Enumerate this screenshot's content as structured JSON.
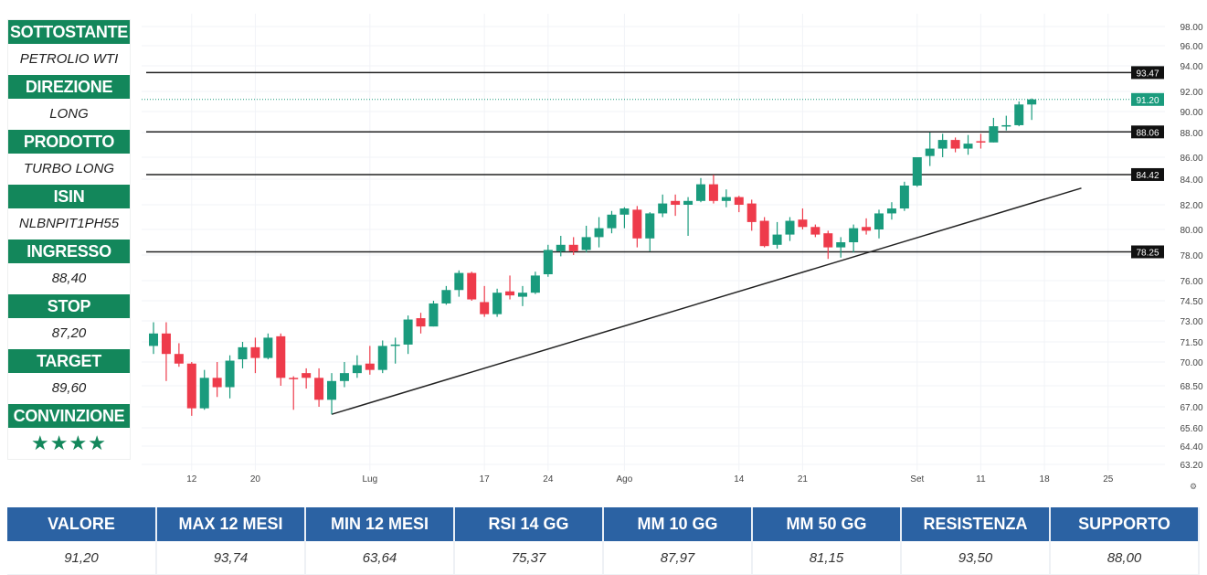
{
  "panel": [
    {
      "label": "SOTTOSTANTE",
      "value": "PETROLIO WTI"
    },
    {
      "label": "DIREZIONE",
      "value": "LONG"
    },
    {
      "label": "PRODOTTO",
      "value": "TURBO LONG"
    },
    {
      "label": "ISIN",
      "value": "NLBNPIT1PH55"
    },
    {
      "label": "INGRESSO",
      "value": "88,40"
    },
    {
      "label": "STOP",
      "value": "87,20"
    },
    {
      "label": "TARGET",
      "value": "89,60"
    },
    {
      "label": "CONVINZIONE",
      "value": "★★★★"
    }
  ],
  "stats": {
    "headers": [
      "VALORE",
      "MAX 12 MESI",
      "MIN 12 MESI",
      "RSI 14 GG",
      "MM 10 GG",
      "MM 50 GG",
      "RESISTENZA",
      "SUPPORTO"
    ],
    "values": [
      "91,20",
      "93,74",
      "63,64",
      "75,37",
      "87,97",
      "81,15",
      "93,50",
      "88,00"
    ]
  },
  "colors": {
    "up": "#1a9b7d",
    "down": "#ee3b4b",
    "panel": "#13875b",
    "table": "#2b62a3",
    "last": "#1a9b7d"
  },
  "chart_data": {
    "type": "candlestick",
    "y_ticks": [
      "98.00",
      "96.00",
      "94.00",
      "92.00",
      "90.00",
      "88.00",
      "86.00",
      "84.00",
      "82.00",
      "80.00",
      "78.00",
      "76.00",
      "74.50",
      "73.00",
      "71.50",
      "70.00",
      "68.50",
      "67.00",
      "65.60",
      "64.40",
      "63.20"
    ],
    "x_labels": [
      {
        "label": "12",
        "index": 3
      },
      {
        "label": "20",
        "index": 8
      },
      {
        "label": "Lug",
        "index": 17
      },
      {
        "label": "17",
        "index": 26
      },
      {
        "label": "24",
        "index": 31
      },
      {
        "label": "Ago",
        "index": 37
      },
      {
        "label": "14",
        "index": 46
      },
      {
        "label": "21",
        "index": 51
      },
      {
        "label": "Set",
        "index": 60
      },
      {
        "label": "11",
        "index": 65
      },
      {
        "label": "18",
        "index": 70
      },
      {
        "label": "25",
        "index": 75
      }
    ],
    "levels": [
      {
        "price": 93.47,
        "label": "93.47"
      },
      {
        "price": 88.06,
        "label": "88.06"
      },
      {
        "price": 84.42,
        "label": "84.42"
      },
      {
        "price": 78.25,
        "label": "78.25"
      }
    ],
    "last_price": {
      "price": 91.2,
      "label": "91.20"
    },
    "trendline": {
      "from": {
        "index": 14,
        "price": 66.5
      },
      "to": {
        "index": 72.9,
        "price": 83.3
      }
    },
    "ohlc": [
      [
        71.2,
        72.9,
        70.6,
        72.1
      ],
      [
        72.1,
        72.9,
        68.8,
        70.6
      ],
      [
        70.6,
        71.4,
        69.7,
        69.9
      ],
      [
        69.9,
        70.0,
        66.4,
        66.9
      ],
      [
        66.9,
        69.5,
        66.8,
        69.0
      ],
      [
        69.0,
        70.0,
        67.7,
        68.4
      ],
      [
        68.4,
        70.5,
        67.6,
        70.1
      ],
      [
        70.2,
        71.5,
        69.6,
        71.1
      ],
      [
        71.1,
        71.8,
        69.3,
        70.3
      ],
      [
        70.3,
        72.1,
        70.2,
        71.8
      ],
      [
        71.9,
        72.1,
        68.5,
        69.0
      ],
      [
        69.0,
        69.1,
        66.8,
        68.95
      ],
      [
        69.3,
        69.6,
        68.3,
        69.0
      ],
      [
        69.0,
        69.6,
        67.0,
        67.5
      ],
      [
        67.5,
        69.3,
        66.5,
        68.8
      ],
      [
        68.8,
        70.0,
        68.4,
        69.3
      ],
      [
        69.3,
        70.5,
        69.0,
        69.8
      ],
      [
        69.9,
        71.2,
        69.2,
        69.5
      ],
      [
        69.5,
        71.6,
        69.3,
        71.2
      ],
      [
        71.2,
        71.8,
        69.9,
        71.3
      ],
      [
        71.3,
        73.4,
        70.6,
        73.1
      ],
      [
        73.2,
        73.6,
        72.1,
        72.6
      ],
      [
        72.6,
        74.5,
        72.6,
        74.3
      ],
      [
        74.3,
        75.6,
        74.2,
        75.3
      ],
      [
        75.3,
        76.8,
        74.8,
        76.6
      ],
      [
        76.6,
        76.7,
        74.5,
        74.6
      ],
      [
        74.4,
        75.6,
        73.3,
        73.5
      ],
      [
        73.5,
        75.4,
        73.3,
        75.1
      ],
      [
        75.2,
        76.4,
        74.6,
        74.9
      ],
      [
        74.8,
        75.6,
        74.1,
        75.1
      ],
      [
        75.1,
        76.7,
        75.0,
        76.4
      ],
      [
        76.5,
        78.8,
        76.3,
        78.4
      ],
      [
        78.3,
        79.5,
        77.9,
        78.8
      ],
      [
        78.8,
        79.4,
        78.0,
        78.3
      ],
      [
        78.4,
        80.3,
        78.2,
        79.4
      ],
      [
        79.4,
        81.0,
        78.6,
        80.1
      ],
      [
        80.1,
        81.5,
        79.7,
        81.2
      ],
      [
        81.2,
        81.8,
        80.1,
        81.7
      ],
      [
        81.6,
        81.9,
        78.6,
        79.3
      ],
      [
        79.3,
        81.4,
        78.3,
        81.3
      ],
      [
        81.3,
        82.8,
        81.0,
        82.1
      ],
      [
        82.3,
        82.8,
        81.1,
        82.0
      ],
      [
        82.0,
        82.6,
        79.5,
        82.3
      ],
      [
        82.3,
        84.1,
        82.2,
        83.6
      ],
      [
        83.6,
        84.4,
        82.1,
        82.3
      ],
      [
        82.3,
        83.2,
        81.8,
        82.6
      ],
      [
        82.6,
        82.7,
        81.4,
        82.0
      ],
      [
        82.1,
        82.4,
        79.9,
        80.6
      ],
      [
        80.7,
        81.0,
        78.6,
        78.7
      ],
      [
        78.8,
        80.6,
        78.5,
        79.6
      ],
      [
        79.6,
        81.0,
        79.1,
        80.7
      ],
      [
        80.8,
        81.7,
        80.0,
        80.2
      ],
      [
        80.2,
        80.4,
        79.4,
        79.6
      ],
      [
        79.7,
        79.9,
        77.7,
        78.6
      ],
      [
        78.6,
        79.4,
        77.8,
        79.0
      ],
      [
        79.0,
        80.4,
        78.2,
        80.1
      ],
      [
        80.2,
        80.9,
        79.6,
        79.9
      ],
      [
        80.0,
        81.6,
        79.3,
        81.3
      ],
      [
        81.3,
        82.2,
        80.8,
        81.7
      ],
      [
        81.7,
        83.8,
        81.5,
        83.5
      ],
      [
        83.5,
        86.0,
        83.4,
        86.0
      ],
      [
        86.1,
        88.0,
        85.2,
        86.7
      ],
      [
        86.7,
        87.9,
        86.0,
        87.4
      ],
      [
        87.4,
        87.6,
        86.4,
        86.7
      ],
      [
        86.7,
        87.8,
        86.2,
        87.1
      ],
      [
        87.3,
        87.9,
        86.7,
        87.2
      ],
      [
        87.2,
        89.4,
        87.2,
        88.6
      ],
      [
        88.6,
        89.6,
        88.2,
        88.7
      ],
      [
        88.7,
        91.0,
        88.6,
        90.7
      ],
      [
        90.7,
        91.3,
        89.2,
        91.2
      ]
    ]
  }
}
